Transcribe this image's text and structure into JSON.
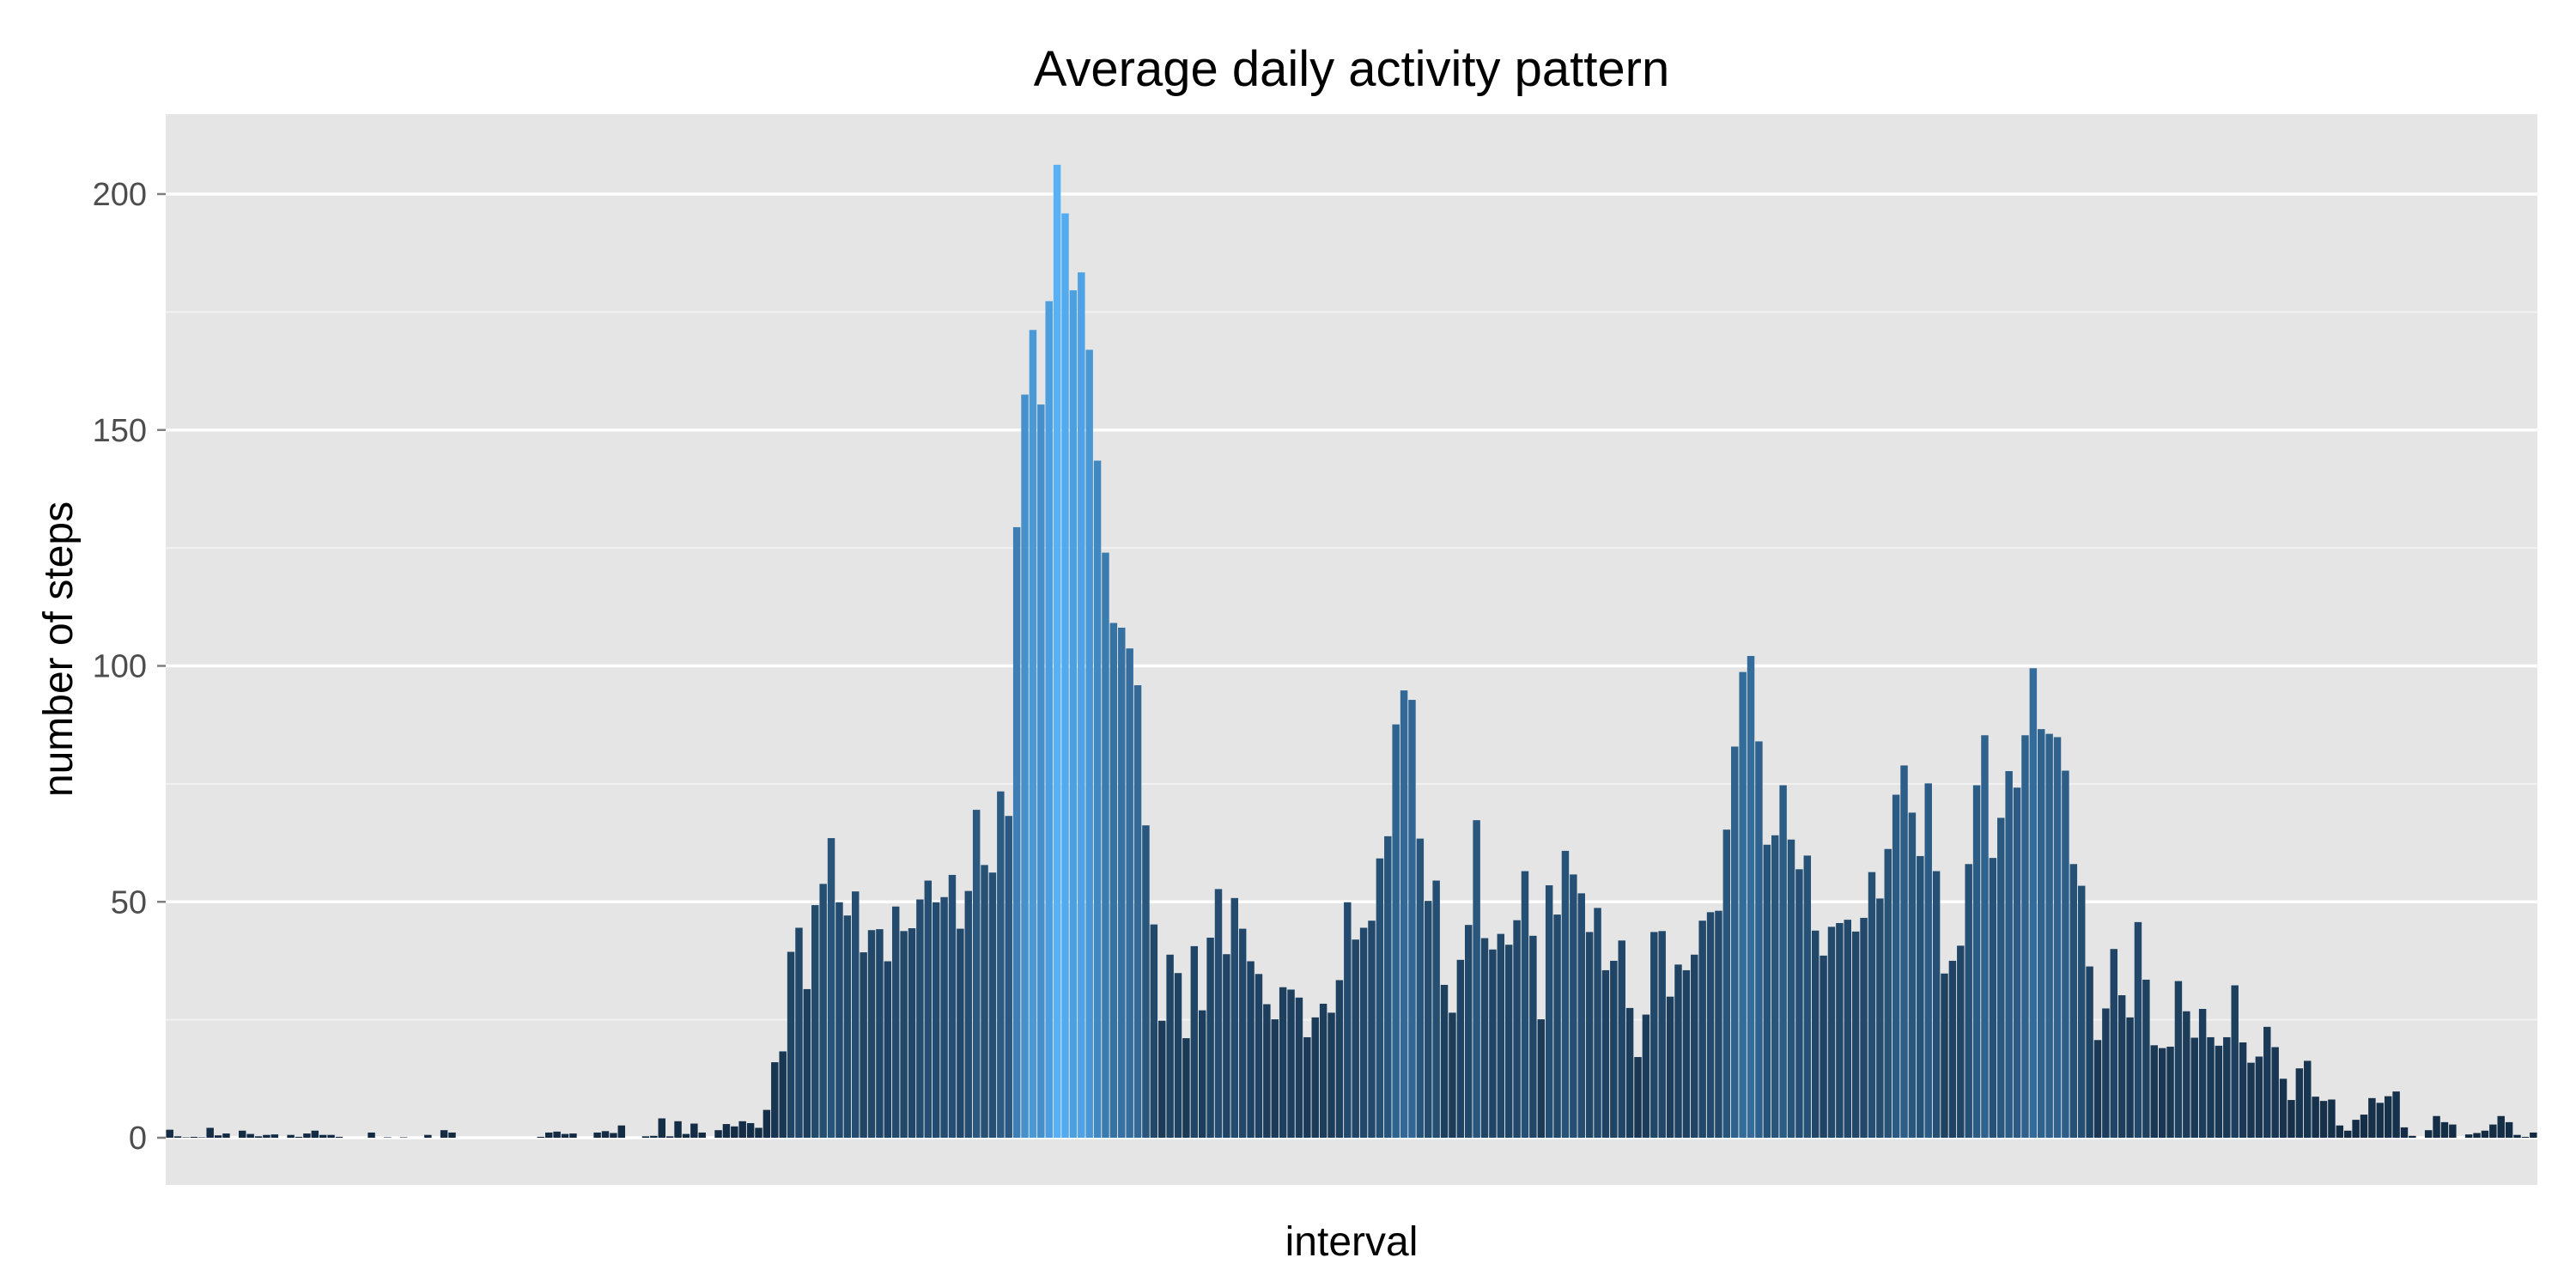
{
  "chart_data": {
    "type": "bar",
    "title": "Average daily activity pattern",
    "xlabel": "interval",
    "ylabel": "number of steps",
    "ylim": [
      0,
      217
    ],
    "yticks": [
      0,
      50,
      100,
      150,
      200
    ],
    "yticklabels": [
      "0",
      "50",
      "100",
      "150",
      "200"
    ],
    "x_ticks_shown": false,
    "grid": true,
    "legend": "none",
    "color_low": "#132B43",
    "color_high": "#56B1F7",
    "panel_color": "#E5E5E5",
    "values": [
      1.7,
      0.3,
      0.1,
      0.2,
      0.1,
      2.1,
      0.5,
      0.9,
      0,
      1.5,
      0.8,
      0.3,
      0.6,
      0.7,
      0,
      0.6,
      0.2,
      0.9,
      1.5,
      0.6,
      0.6,
      0.2,
      0,
      0,
      0,
      1.1,
      0,
      0.1,
      0,
      0.1,
      0,
      0,
      0.6,
      0,
      1.6,
      1.1,
      0,
      0,
      0,
      0,
      0,
      0,
      0,
      0,
      0,
      0,
      0.2,
      1.1,
      1.3,
      0.8,
      0.9,
      0,
      0,
      1.1,
      1.4,
      1.0,
      2.6,
      0,
      0,
      0.3,
      0.4,
      4.1,
      0.3,
      3.5,
      0.8,
      3.0,
      1.1,
      0,
      1.6,
      2.9,
      2.4,
      3.5,
      3.1,
      2.1,
      5.9,
      16.0,
      18.3,
      39.4,
      44.5,
      31.5,
      49.3,
      53.8,
      63.5,
      49.9,
      47.1,
      52.2,
      39.3,
      44.0,
      44.2,
      37.4,
      49.0,
      43.8,
      44.4,
      50.5,
      54.5,
      49.9,
      51.0,
      55.7,
      44.3,
      52.3,
      69.5,
      57.8,
      56.2,
      73.4,
      68.2,
      129.4,
      157.5,
      171.2,
      155.4,
      177.3,
      206.2,
      195.9,
      179.6,
      183.4,
      167.0,
      143.5,
      124.0,
      109.1,
      108.1,
      103.7,
      95.9,
      66.2,
      45.2,
      24.8,
      38.8,
      34.9,
      21.1,
      40.6,
      27.0,
      42.4,
      52.7,
      38.9,
      50.8,
      44.3,
      37.4,
      34.7,
      28.3,
      25.1,
      31.9,
      31.4,
      29.7,
      21.3,
      25.5,
      28.4,
      26.5,
      33.4,
      49.9,
      42.0,
      44.5,
      46.0,
      59.2,
      63.9,
      87.6,
      94.8,
      92.8,
      63.4,
      50.2,
      54.5,
      32.4,
      26.5,
      37.7,
      45.1,
      67.3,
      42.3,
      39.9,
      43.2,
      40.9,
      46.1,
      56.5,
      42.8,
      25.1,
      53.5,
      47.3,
      60.8,
      55.8,
      51.8,
      43.6,
      48.7,
      35.5,
      37.5,
      41.8,
      27.5,
      17.1,
      26.1,
      43.6,
      43.8,
      29.9,
      36.7,
      35.5,
      38.8,
      46.0,
      47.8,
      48.1,
      65.3,
      82.9,
      98.7,
      102.1,
      84.0,
      62.1,
      64.1,
      74.7,
      63.2,
      56.9,
      59.8,
      43.9,
      38.6,
      44.7,
      45.5,
      46.2,
      43.7,
      46.6,
      56.3,
      50.7,
      61.2,
      72.7,
      78.9,
      68.9,
      59.7,
      75.1,
      56.5,
      34.8,
      37.5,
      40.7,
      58.0,
      74.7,
      85.3,
      59.3,
      67.8,
      77.7,
      74.2,
      85.3,
      99.5,
      86.6,
      85.6,
      84.9,
      77.8,
      58.0,
      53.4,
      36.3,
      20.7,
      27.4,
      40.0,
      30.2,
      25.5,
      45.7,
      33.5,
      19.6,
      19.0,
      19.3,
      33.2,
      26.8,
      21.2,
      27.3,
      21.3,
      19.5,
      21.3,
      32.3,
      20.2,
      15.9,
      17.2,
      23.5,
      19.2,
      12.5,
      8.0,
      14.7,
      16.3,
      8.7,
      7.8,
      8.1,
      2.6,
      1.5,
      3.8,
      4.9,
      8.4,
      7.4,
      8.8,
      9.8,
      2.2,
      0.4,
      0,
      1.6,
      4.6,
      3.3,
      2.8,
      0,
      0.7,
      1.0,
      1.5,
      2.8,
      4.6,
      3.3,
      0.6,
      0.2,
      1.1
    ]
  }
}
